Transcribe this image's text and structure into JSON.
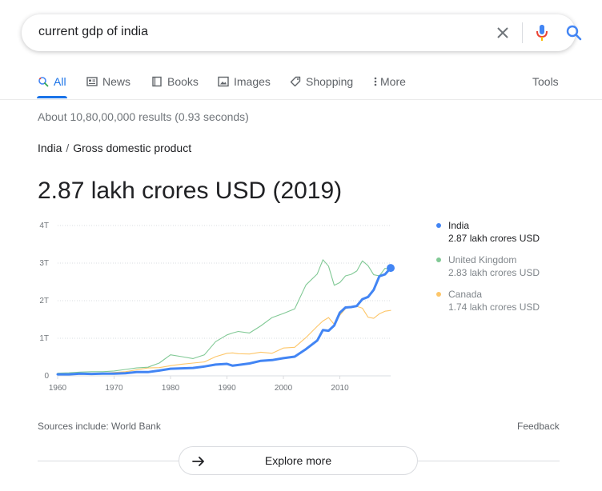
{
  "search": {
    "query": "current gdp of india"
  },
  "tabs": [
    {
      "label": "All",
      "icon": "search-icon"
    },
    {
      "label": "News",
      "icon": "news-icon"
    },
    {
      "label": "Books",
      "icon": "book-icon"
    },
    {
      "label": "Images",
      "icon": "image-icon"
    },
    {
      "label": "Shopping",
      "icon": "tag-icon"
    },
    {
      "label": "More",
      "icon": "more-vertical-icon"
    }
  ],
  "tools_label": "Tools",
  "result_stats": "About 10,80,00,000 results (0.93 seconds)",
  "breadcrumb": {
    "country": "India",
    "separator": "/",
    "metric": "Gross domestic product"
  },
  "headline": "2.87 lakh crores USD (2019)",
  "legend": [
    {
      "name": "India",
      "value": "2.87 lakh crores USD",
      "color": "#4285f4"
    },
    {
      "name": "United Kingdom",
      "value": "2.83 lakh crores USD",
      "color": "#81c995"
    },
    {
      "name": "Canada",
      "value": "1.74 lakh crores USD",
      "color": "#fdc669"
    }
  ],
  "sources": "Sources include: World Bank",
  "feedback": "Feedback",
  "explore_more": "Explore more",
  "colors": {
    "accent": "#1a73e8",
    "india": "#4285f4",
    "uk": "#81c995",
    "canada": "#fdc669"
  },
  "chart_data": {
    "type": "line",
    "title": "",
    "xlabel": "",
    "ylabel": "",
    "xlim": [
      1960,
      2019
    ],
    "ylim": [
      0,
      4
    ],
    "y_ticks": [
      "0",
      "1T",
      "2T",
      "3T",
      "4T"
    ],
    "x_ticks": [
      "1960",
      "1970",
      "1980",
      "1990",
      "2000",
      "2010"
    ],
    "x_tick_values": [
      1960,
      1970,
      1980,
      1990,
      2000,
      2010
    ],
    "grid": true,
    "legend_position": "right",
    "x": [
      1960,
      1962,
      1964,
      1966,
      1968,
      1970,
      1972,
      1974,
      1976,
      1978,
      1980,
      1982,
      1984,
      1986,
      1988,
      1990,
      1991,
      1992,
      1994,
      1996,
      1998,
      2000,
      2002,
      2004,
      2006,
      2007,
      2008,
      2009,
      2010,
      2011,
      2012,
      2013,
      2014,
      2015,
      2016,
      2017,
      2018,
      2019
    ],
    "series": [
      {
        "name": "India",
        "color": "#4285f4",
        "values": [
          0.04,
          0.04,
          0.06,
          0.05,
          0.06,
          0.06,
          0.07,
          0.1,
          0.1,
          0.14,
          0.19,
          0.2,
          0.21,
          0.25,
          0.3,
          0.32,
          0.27,
          0.29,
          0.33,
          0.4,
          0.42,
          0.47,
          0.51,
          0.71,
          0.94,
          1.22,
          1.2,
          1.34,
          1.68,
          1.82,
          1.83,
          1.86,
          2.04,
          2.1,
          2.29,
          2.65,
          2.7,
          2.87
        ]
      },
      {
        "name": "United Kingdom",
        "color": "#81c995",
        "values": [
          0.07,
          0.08,
          0.1,
          0.11,
          0.11,
          0.13,
          0.17,
          0.21,
          0.23,
          0.34,
          0.56,
          0.51,
          0.46,
          0.56,
          0.91,
          1.09,
          1.14,
          1.18,
          1.14,
          1.33,
          1.55,
          1.66,
          1.78,
          2.42,
          2.71,
          3.09,
          2.92,
          2.41,
          2.48,
          2.66,
          2.7,
          2.79,
          3.06,
          2.93,
          2.69,
          2.66,
          2.86,
          2.83
        ]
      },
      {
        "name": "Canada",
        "color": "#fdc669",
        "values": [
          0.04,
          0.04,
          0.05,
          0.06,
          0.07,
          0.09,
          0.11,
          0.16,
          0.21,
          0.22,
          0.27,
          0.31,
          0.34,
          0.37,
          0.51,
          0.6,
          0.61,
          0.59,
          0.58,
          0.63,
          0.6,
          0.74,
          0.76,
          1.02,
          1.32,
          1.46,
          1.55,
          1.37,
          1.61,
          1.79,
          1.83,
          1.85,
          1.8,
          1.56,
          1.53,
          1.65,
          1.72,
          1.74
        ]
      }
    ]
  }
}
